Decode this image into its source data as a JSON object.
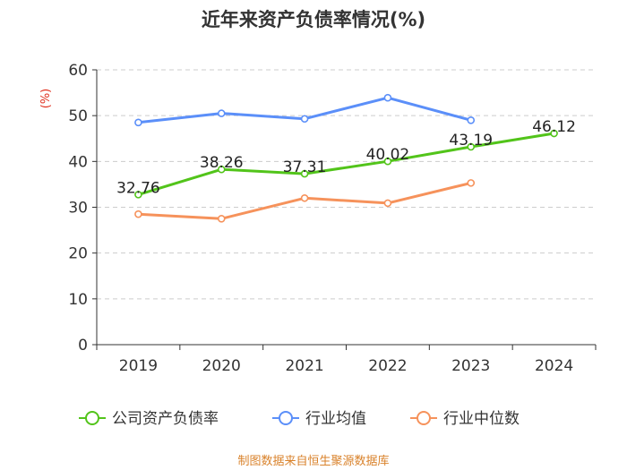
{
  "chart_data": {
    "type": "line",
    "title": "近年来资产负债率情况(%)",
    "ylabel": "(%)",
    "xlabel": "",
    "categories": [
      "2019",
      "2020",
      "2021",
      "2022",
      "2023",
      "2024"
    ],
    "ylim": [
      0,
      60
    ],
    "yticks": [
      "0",
      "10",
      "20",
      "30",
      "40",
      "50",
      "60"
    ],
    "grid": true,
    "legend_position": "bottom",
    "series": [
      {
        "name": "公司资产负债率",
        "color": "#52c41a",
        "values": [
          32.76,
          38.26,
          37.31,
          40.02,
          43.19,
          46.12
        ],
        "labels": [
          "32.76",
          "38.26",
          "37.31",
          "40.02",
          "43.19",
          "46.12"
        ]
      },
      {
        "name": "行业均值",
        "color": "#5b8ff9",
        "values": [
          48.5,
          50.5,
          49.3,
          53.9,
          49.0,
          null
        ]
      },
      {
        "name": "行业中位数",
        "color": "#f6925b",
        "values": [
          28.5,
          27.5,
          32.0,
          30.9,
          35.3,
          null
        ]
      }
    ]
  },
  "footer": {
    "source": "制图数据来自恒生聚源数据库"
  }
}
